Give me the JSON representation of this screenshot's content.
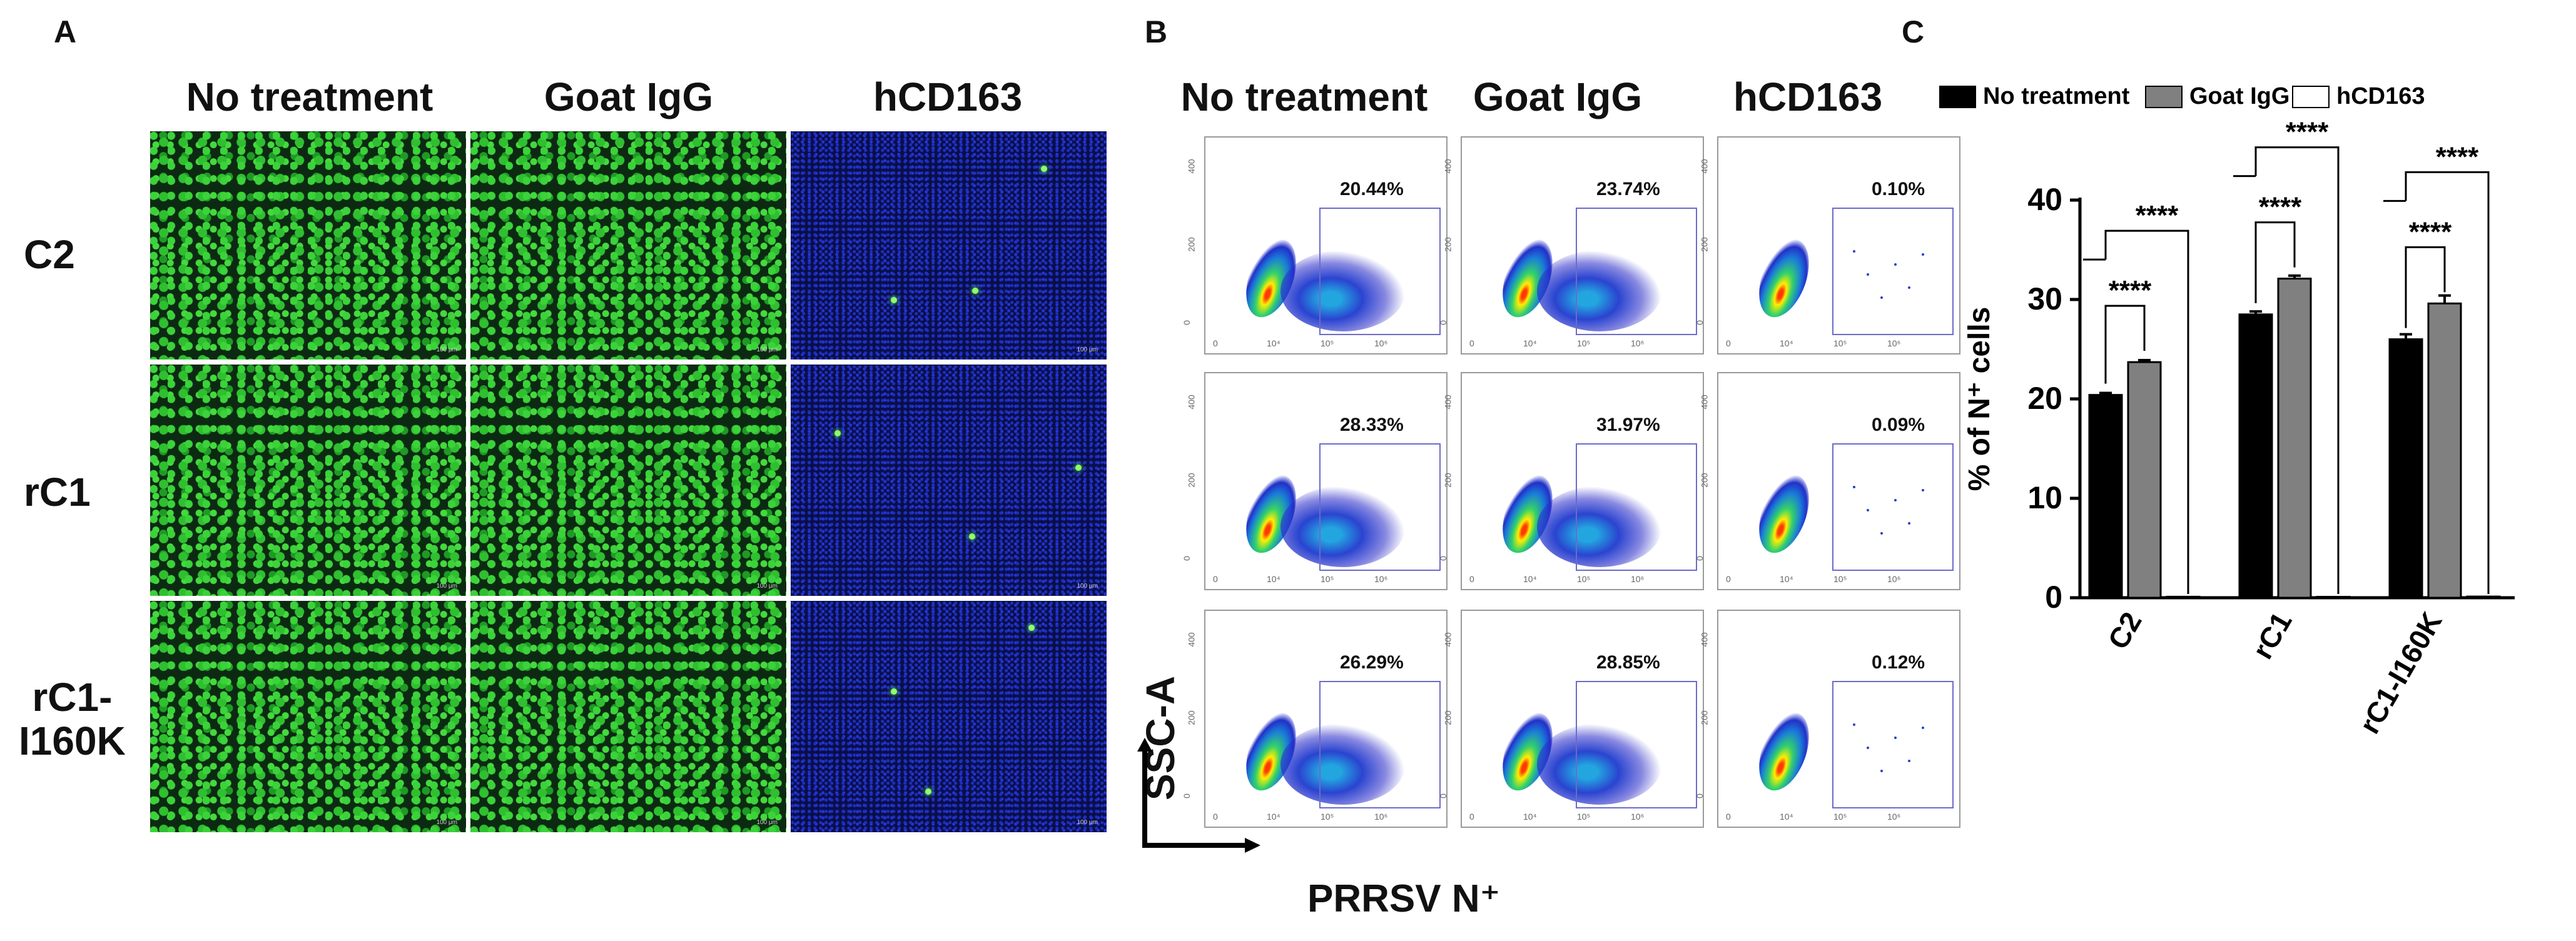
{
  "panels": {
    "a": "A",
    "b": "B",
    "c": "C"
  },
  "panel_a": {
    "columns": [
      "No treatment",
      "Goat IgG",
      "hCD163"
    ],
    "rows": [
      "C2",
      "rC1",
      "rC1-\nI160K"
    ],
    "scalebar": "100 μm"
  },
  "panel_b": {
    "columns": [
      "No treatment",
      "Goat IgG",
      "hCD163"
    ],
    "percentages": [
      [
        "20.44%",
        "23.74%",
        "0.10%"
      ],
      [
        "28.33%",
        "31.97%",
        "0.09%"
      ],
      [
        "26.29%",
        "28.85%",
        "0.12%"
      ]
    ],
    "y_ticks": [
      "400",
      "200",
      "0"
    ],
    "x_ticks": [
      "0",
      "10⁴",
      "10⁵",
      "10⁶"
    ],
    "y_axis_label": "SSC-A",
    "x_axis_label": "PRRSV N⁺"
  },
  "chart_data": {
    "type": "bar",
    "categories": [
      "C2",
      "rC1",
      "rC1-I160K"
    ],
    "series": [
      {
        "name": "No treatment",
        "color": "#000000",
        "values": [
          20.4,
          28.5,
          26.0
        ],
        "errors": [
          0.2,
          0.3,
          0.5
        ]
      },
      {
        "name": "Goat IgG",
        "color": "#808080",
        "values": [
          23.7,
          32.1,
          29.6
        ],
        "errors": [
          0.2,
          0.3,
          0.8
        ]
      },
      {
        "name": "hCD163",
        "color": "#ffffff",
        "values": [
          0.1,
          0.09,
          0.12
        ],
        "errors": [
          0,
          0,
          0
        ]
      }
    ],
    "ylabel": "% of N⁺ cells",
    "ylim": [
      0,
      40
    ],
    "yticks": [
      0,
      10,
      20,
      30,
      40
    ],
    "significance": "****",
    "legend_position": "top"
  }
}
